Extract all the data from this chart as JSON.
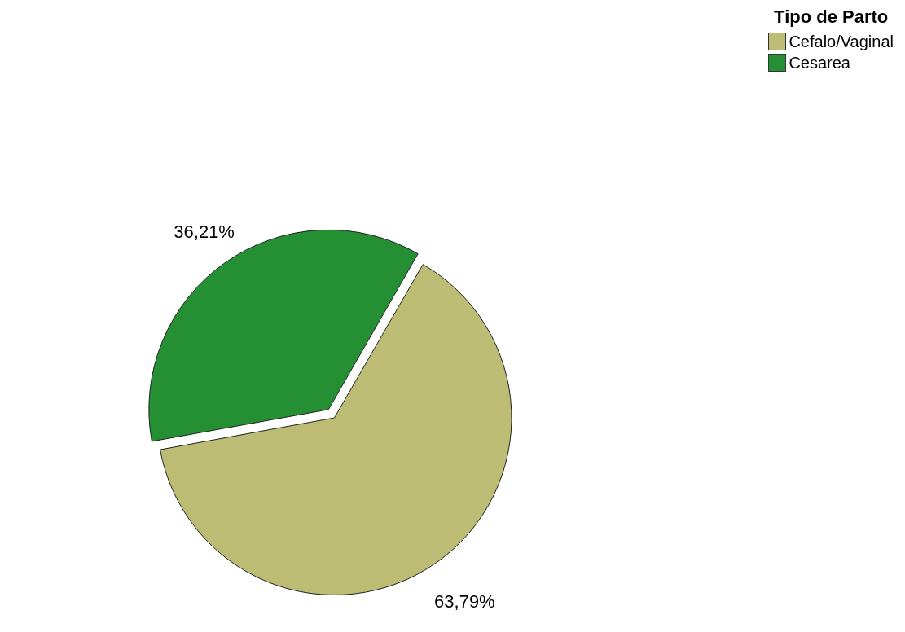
{
  "chart_data": {
    "type": "pie",
    "legend_title": "Tipo de Parto",
    "legend": "top right",
    "categories": [
      "Cefalo/Vaginal",
      "Cesarea"
    ],
    "values": [
      63.79,
      36.21
    ],
    "colors": [
      "#bcbc74",
      "#249033"
    ],
    "value_labels": [
      "63,79%",
      "36,21%"
    ]
  }
}
